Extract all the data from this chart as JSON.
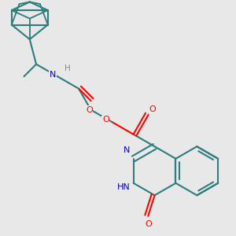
{
  "background_color": "#e8e8e8",
  "bond_color": "#2d7d7d",
  "atom_colors": {
    "O": "#ff0000",
    "N": "#0000cc",
    "H": "#888888",
    "C": "#2d7d7d"
  },
  "figsize": [
    3.0,
    3.0
  ],
  "dpi": 100
}
